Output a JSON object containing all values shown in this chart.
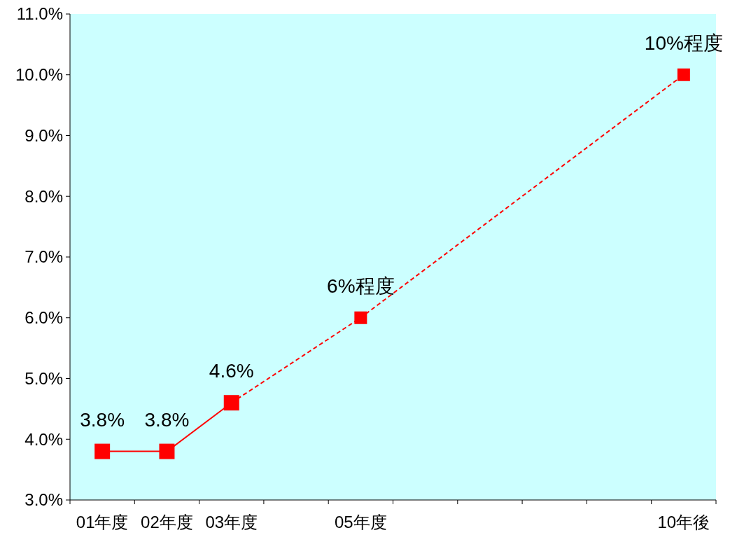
{
  "chart_data": {
    "type": "line",
    "categories": [
      "01年度",
      "02年度",
      "03年度",
      null,
      "05年度",
      null,
      null,
      null,
      null,
      "10年後"
    ],
    "series": [
      {
        "color": "#ff0000",
        "line_style": "solid",
        "marker": "square",
        "values": [
          3.8,
          3.8,
          4.6,
          null,
          null,
          null,
          null,
          null,
          null,
          null
        ],
        "value_labels": [
          "3.8%",
          "3.8%",
          "4.6%",
          null,
          null,
          null,
          null,
          null,
          null,
          null
        ]
      },
      {
        "color": "#ff0000",
        "line_style": "dashed",
        "marker": "square",
        "values": [
          null,
          null,
          4.6,
          null,
          6,
          null,
          null,
          null,
          null,
          10
        ],
        "value_labels": [
          null,
          null,
          null,
          null,
          "6%程度",
          null,
          null,
          null,
          null,
          "10%程度"
        ]
      }
    ],
    "ylim": [
      3,
      11
    ],
    "yticks": [
      {
        "value": 3,
        "label": "3.0%"
      },
      {
        "value": 4,
        "label": "4.0%"
      },
      {
        "value": 5,
        "label": "5.0%"
      },
      {
        "value": 6,
        "label": "6.0%"
      },
      {
        "value": 7,
        "label": "7.0%"
      },
      {
        "value": 8,
        "label": "8.0%"
      },
      {
        "value": 9,
        "label": "9.0%"
      },
      {
        "value": 10,
        "label": "10.0%"
      },
      {
        "value": 11,
        "label": "11.0%"
      }
    ],
    "grid": false
  }
}
